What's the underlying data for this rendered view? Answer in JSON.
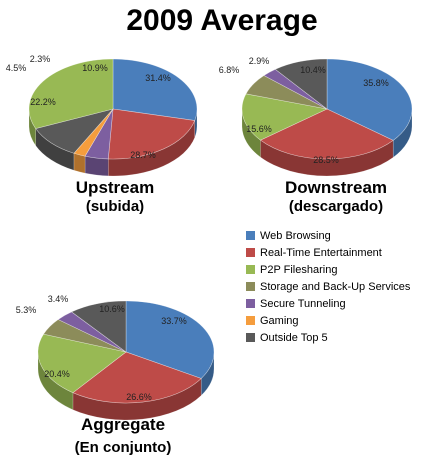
{
  "title": "2009 Average",
  "colors": {
    "Web Browsing": "#4a7ebb",
    "Real-Time Entertainment": "#be4b48",
    "P2P Filesharing": "#98b954",
    "Storage and Back-Up Services": "#8c8c5a",
    "Secure Tunneling": "#7d5fa0",
    "Gaming": "#f59d3d",
    "Outside Top 5": "#595959"
  },
  "legend": [
    "Web Browsing",
    "Real-Time Entertainment",
    "P2P Filesharing",
    "Storage and Back-Up Services",
    "Secure Tunneling",
    "Gaming",
    "Outside Top 5"
  ],
  "chart_data": [
    {
      "type": "pie",
      "title": "Upstream",
      "subtitle": "(subida)",
      "slices": [
        {
          "name": "Web Browsing",
          "value": 28.7
        },
        {
          "name": "Real-Time Entertainment",
          "value": 22.2
        },
        {
          "name": "Secure Tunneling",
          "value": 4.5
        },
        {
          "name": "Gaming",
          "value": 2.3
        },
        {
          "name": "Outside Top 5",
          "value": 10.9
        },
        {
          "name": "P2P Filesharing",
          "value": 31.4
        }
      ]
    },
    {
      "type": "pie",
      "title": "Downstream",
      "subtitle": "(descargado)",
      "slices": [
        {
          "name": "Web Browsing",
          "value": 35.8
        },
        {
          "name": "Real-Time Entertainment",
          "value": 28.5
        },
        {
          "name": "P2P Filesharing",
          "value": 15.6
        },
        {
          "name": "Storage and Back-Up Services",
          "value": 6.8
        },
        {
          "name": "Secure Tunneling",
          "value": 2.9
        },
        {
          "name": "Outside Top 5",
          "value": 10.4
        }
      ]
    },
    {
      "type": "pie",
      "title": "Aggregate",
      "subtitle": "(En conjunto)",
      "slices": [
        {
          "name": "Web Browsing",
          "value": 33.7
        },
        {
          "name": "Real-Time Entertainment",
          "value": 26.6
        },
        {
          "name": "P2P Filesharing",
          "value": 20.4
        },
        {
          "name": "Storage and Back-Up Services",
          "value": 5.3
        },
        {
          "name": "Secure Tunneling",
          "value": 3.4
        },
        {
          "name": "Outside Top 5",
          "value": 10.6
        }
      ]
    }
  ]
}
